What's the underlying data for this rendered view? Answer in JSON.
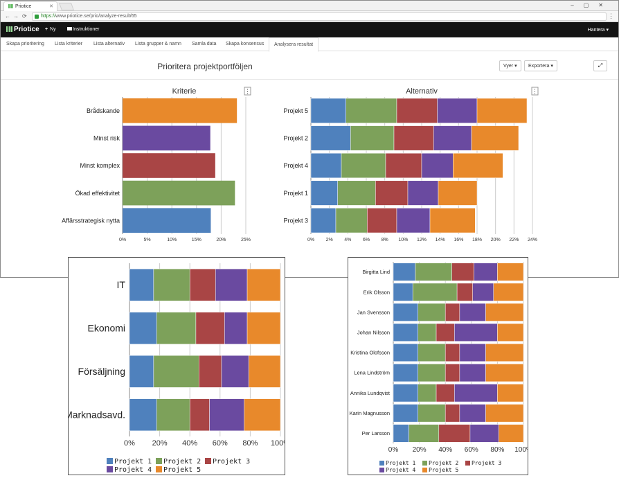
{
  "browser": {
    "tab_title": "Priotice",
    "url_scheme": "https://",
    "url_rest": "www.priotice.se/prio/analyze-result/65"
  },
  "app": {
    "brand": "Priotice",
    "nav_new": "Ny",
    "nav_instructions": "Instruktioner",
    "nav_manage": "Hantera"
  },
  "tabs": [
    {
      "label": "Skapa prioritering"
    },
    {
      "label": "Lista kriterier"
    },
    {
      "label": "Lista alternativ"
    },
    {
      "label": "Lista grupper & namn"
    },
    {
      "label": "Samla data"
    },
    {
      "label": "Skapa konsensus"
    },
    {
      "label": "Analysera resultat",
      "active": true
    }
  ],
  "page": {
    "title": "Prioritera projektportföljen",
    "views_button": "Vyer",
    "export_button": "Exportera"
  },
  "colors": {
    "p1": "#4f81bd",
    "p2": "#7da15a",
    "p3": "#a94545",
    "p4": "#6a4aa0",
    "p5": "#e8892b",
    "grid": "#cccccc"
  },
  "chart_data": [
    {
      "type": "bar",
      "title": "Kriterie",
      "orientation": "horizontal",
      "categories": [
        "Brådskande",
        "Minst risk",
        "Minst komplex",
        "Ökad effektivitet",
        "Affärsstrategisk nytta"
      ],
      "values": [
        23.2,
        17.8,
        18.8,
        22.8,
        17.9
      ],
      "bar_colors": [
        "#e8892b",
        "#6a4aa0",
        "#a94545",
        "#7da15a",
        "#4f81bd"
      ],
      "xlim": [
        0,
        25
      ],
      "ticks": [
        "0%",
        "5%",
        "10%",
        "15%",
        "20%",
        "25%"
      ],
      "tick_values": [
        0,
        5,
        10,
        15,
        20,
        25
      ]
    },
    {
      "type": "bar",
      "stacked": true,
      "title": "Alternativ",
      "orientation": "horizontal",
      "categories": [
        "Projekt 5",
        "Projekt 2",
        "Projekt 4",
        "Projekt 1",
        "Projekt 3"
      ],
      "series": [
        {
          "values": [
            3.8,
            4.3,
            3.3,
            2.9,
            2.7
          ]
        },
        {
          "values": [
            5.5,
            4.7,
            4.8,
            4.1,
            3.4
          ]
        },
        {
          "values": [
            4.4,
            4.3,
            3.9,
            3.5,
            3.2
          ]
        },
        {
          "values": [
            4.3,
            4.1,
            3.4,
            3.3,
            3.6
          ]
        },
        {
          "values": [
            5.4,
            5.1,
            5.4,
            4.2,
            4.9
          ]
        }
      ],
      "xlim": [
        0,
        24
      ],
      "ticks": [
        "0%",
        "2%",
        "4%",
        "6%",
        "8%",
        "10%",
        "12%",
        "14%",
        "16%",
        "18%",
        "20%",
        "22%",
        "24%"
      ],
      "tick_values": [
        0,
        2,
        4,
        6,
        8,
        10,
        12,
        14,
        16,
        18,
        20,
        22,
        24
      ]
    },
    {
      "type": "bar",
      "stacked": true,
      "orientation": "horizontal",
      "categories": [
        "IT",
        "Ekonomi",
        "Försäljning",
        "Marknadsavd."
      ],
      "series": [
        {
          "name": "Projekt 1",
          "values": [
            16,
            18,
            16,
            18
          ]
        },
        {
          "name": "Projekt 2",
          "values": [
            24,
            26,
            30,
            22
          ]
        },
        {
          "name": "Projekt 3",
          "values": [
            17,
            19,
            15,
            13
          ]
        },
        {
          "name": "Projekt 4",
          "values": [
            21,
            15,
            18,
            23
          ]
        },
        {
          "name": "Projekt 5",
          "values": [
            22,
            22,
            21,
            24
          ]
        }
      ],
      "xlim": [
        0,
        100
      ],
      "ticks": [
        "0%",
        "20%",
        "40%",
        "60%",
        "80%",
        "100%"
      ],
      "tick_values": [
        0,
        20,
        40,
        60,
        80,
        100
      ],
      "legend": "bottom"
    },
    {
      "type": "bar",
      "stacked": true,
      "orientation": "horizontal",
      "categories": [
        "Birgitta Lind",
        "Erik Olsson",
        "Jan Svensson",
        "Johan Nilsson",
        "Kristina Olofsson",
        "Lena Lindström",
        "Annika Lundqvist",
        "Karin Magnusson",
        "Per Larsson"
      ],
      "series": [
        {
          "name": "Projekt 1",
          "values": [
            17,
            15,
            19,
            19,
            19,
            19,
            19,
            19,
            12
          ]
        },
        {
          "name": "Projekt 2",
          "values": [
            28,
            34,
            21,
            14,
            21,
            21,
            14,
            21,
            23
          ]
        },
        {
          "name": "Projekt 3",
          "values": [
            17,
            12,
            11,
            14,
            11,
            11,
            14,
            11,
            24
          ]
        },
        {
          "name": "Projekt 4",
          "values": [
            18,
            16,
            20,
            33,
            20,
            20,
            33,
            20,
            22
          ]
        },
        {
          "name": "Projekt 5",
          "values": [
            20,
            23,
            29,
            20,
            29,
            29,
            20,
            29,
            19
          ]
        }
      ],
      "xlim": [
        0,
        100
      ],
      "ticks": [
        "0%",
        "20%",
        "40%",
        "60%",
        "80%",
        "100%"
      ],
      "tick_values": [
        0,
        20,
        40,
        60,
        80,
        100
      ],
      "legend": "bottom"
    }
  ]
}
